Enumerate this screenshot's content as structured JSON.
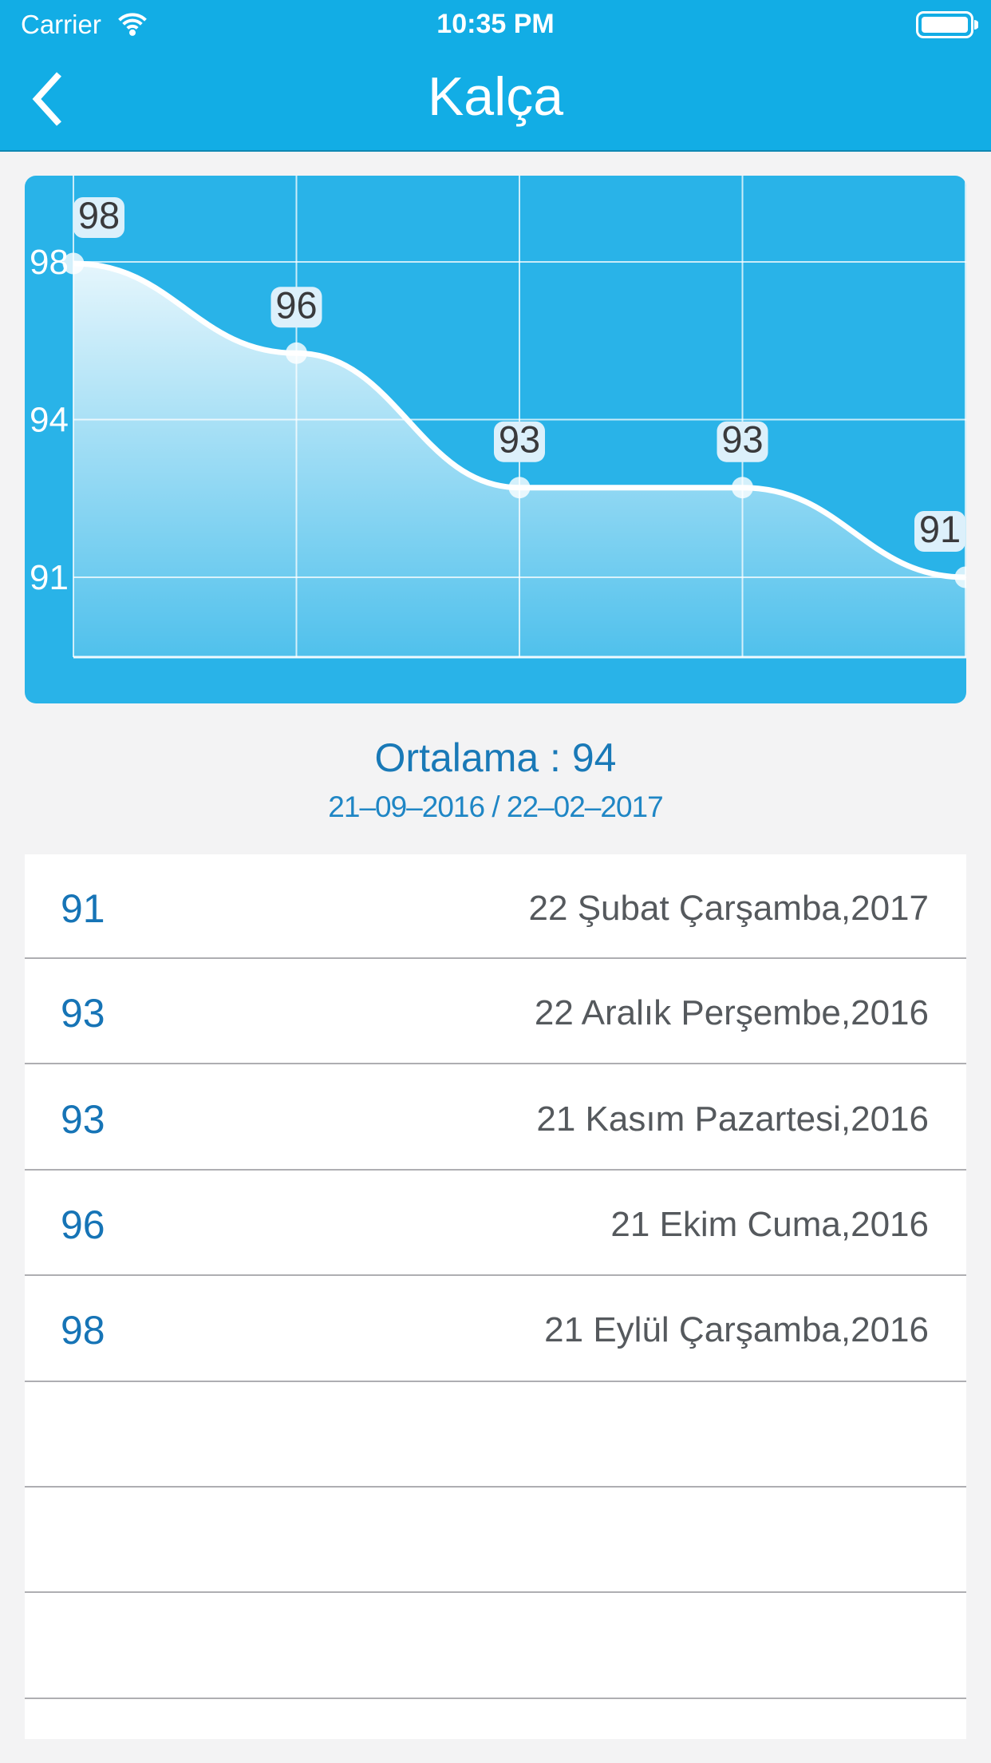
{
  "status_bar": {
    "carrier": "Carrier",
    "time": "10:35 PM",
    "wifi_icon": "wifi",
    "battery_icon": "battery-full"
  },
  "nav": {
    "title": "Kalça",
    "back_icon": "chevron-left"
  },
  "chart_data": {
    "type": "line",
    "values": [
      98,
      96,
      93,
      93,
      91
    ],
    "point_labels": [
      "98",
      "96",
      "93",
      "93",
      "91"
    ],
    "y_axis_ticks": [
      "98",
      "94",
      "91"
    ],
    "grid": true,
    "line_color": "#ffffff",
    "panel_color": "#29B3E8",
    "point_label_bg": "#DCF0FB",
    "point_label_text_color": "#3A3A3C",
    "axis_label_color": "#ffffff"
  },
  "summary": {
    "average_label": "Ortalama :",
    "average_value": "94",
    "date_range": "21–09–2016 / 22–02–2017"
  },
  "measurements": {
    "rows": [
      {
        "value": "91",
        "date": "22 Şubat Çarşamba,2017"
      },
      {
        "value": "93",
        "date": "22 Aralık Perşembe,2016"
      },
      {
        "value": "93",
        "date": "21 Kasım Pazartesi,2016"
      },
      {
        "value": "96",
        "date": "21 Ekim Cuma,2016"
      },
      {
        "value": "98",
        "date": "21 Eylül Çarşamba,2016"
      }
    ],
    "empty_row_count": 4
  }
}
